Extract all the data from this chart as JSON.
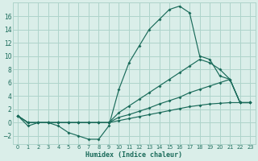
{
  "xlabel": "Humidex (Indice chaleur)",
  "bg_color": "#daeee9",
  "grid_color": "#aed4cb",
  "line_color": "#1a6b5a",
  "xlim": [
    -0.5,
    23.5
  ],
  "ylim": [
    -3.2,
    18
  ],
  "yticks": [
    -2,
    0,
    2,
    4,
    6,
    8,
    10,
    12,
    14,
    16
  ],
  "xticks": [
    0,
    1,
    2,
    3,
    4,
    5,
    6,
    7,
    8,
    9,
    10,
    11,
    12,
    13,
    14,
    15,
    16,
    17,
    18,
    19,
    20,
    21,
    22,
    23
  ],
  "line1_x": [
    0,
    1,
    2,
    3,
    4,
    5,
    6,
    7,
    8,
    9,
    10,
    11,
    12,
    13,
    14,
    15,
    16,
    17,
    18,
    19,
    20,
    21,
    22,
    23
  ],
  "line1_y": [
    1,
    -0.5,
    0,
    0,
    -0.5,
    -1.5,
    -2,
    -2.5,
    -2.5,
    -0.5,
    5,
    9,
    11.5,
    14,
    15.5,
    17,
    17.5,
    16.5,
    10,
    9.5,
    7,
    6.5,
    3,
    3
  ],
  "line2_x": [
    0,
    1,
    2,
    3,
    4,
    5,
    6,
    7,
    8,
    9,
    10,
    11,
    12,
    13,
    14,
    15,
    16,
    17,
    18,
    19,
    20,
    21,
    22,
    23
  ],
  "line2_y": [
    1,
    0,
    0,
    0,
    0,
    0,
    0,
    0,
    0,
    0,
    1.5,
    2.5,
    3.5,
    4.5,
    5.5,
    6.5,
    7.5,
    8.5,
    9.5,
    9.0,
    8.0,
    6.5,
    3,
    3
  ],
  "line3_x": [
    0,
    1,
    2,
    3,
    4,
    5,
    6,
    7,
    8,
    9,
    10,
    11,
    12,
    13,
    14,
    15,
    16,
    17,
    18,
    19,
    20,
    21,
    22,
    23
  ],
  "line3_y": [
    1,
    0,
    0,
    0,
    0,
    0,
    0,
    0,
    0,
    0,
    0.8,
    1.2,
    1.7,
    2.2,
    2.8,
    3.3,
    3.8,
    4.5,
    5.0,
    5.5,
    6.0,
    6.5,
    3,
    3
  ],
  "line4_x": [
    0,
    1,
    2,
    3,
    4,
    5,
    6,
    7,
    8,
    9,
    10,
    11,
    12,
    13,
    14,
    15,
    16,
    17,
    18,
    19,
    20,
    21,
    22,
    23
  ],
  "line4_y": [
    1,
    0,
    0,
    0,
    0,
    0,
    0,
    0,
    0,
    0,
    0.3,
    0.6,
    0.9,
    1.2,
    1.5,
    1.8,
    2.1,
    2.4,
    2.6,
    2.8,
    2.9,
    3.0,
    3.0,
    3.0
  ]
}
